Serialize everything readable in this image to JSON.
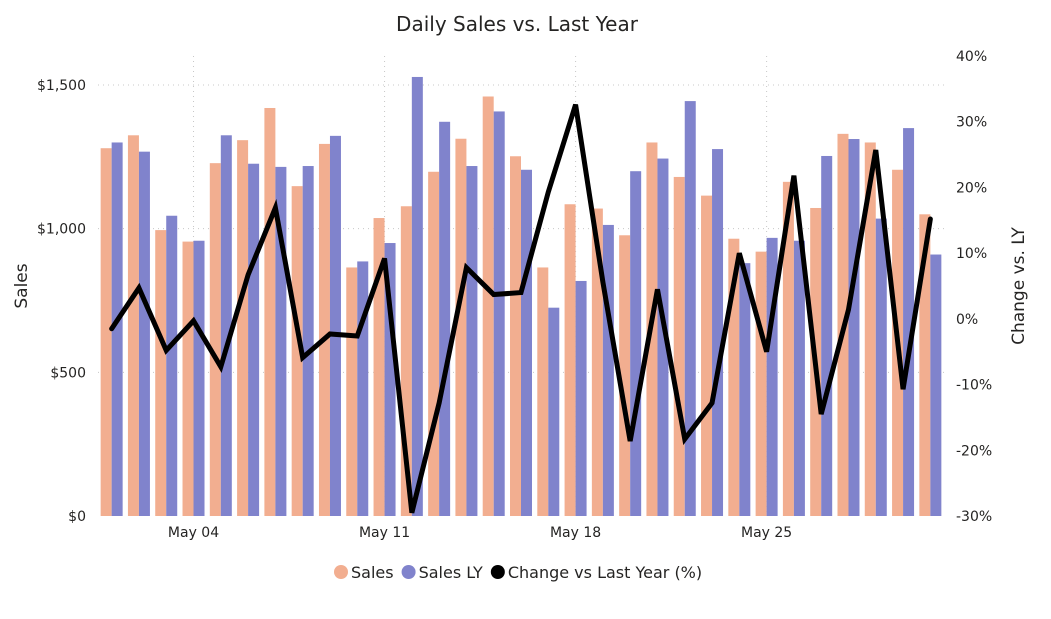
{
  "chart_data": {
    "type": "bar",
    "title": "Daily Sales vs. Last Year",
    "xlabel": "",
    "ylabel": "Sales",
    "y2label": "Change vs. LY",
    "ylim": [
      0,
      1500
    ],
    "y_ticks": [
      "$0",
      "$500",
      "$1,000",
      "$1,500"
    ],
    "y_tick_values": [
      0,
      500,
      1000,
      1500
    ],
    "y2lim": [
      -30,
      40
    ],
    "y2_ticks": [
      "-30%",
      "-20%",
      "-10%",
      "0%",
      "10%",
      "20%",
      "30%",
      "40%"
    ],
    "y2_tick_values": [
      -30,
      -20,
      -10,
      0,
      10,
      20,
      30,
      40
    ],
    "x_tick_labels": [
      {
        "label": "May 04",
        "index": 3
      },
      {
        "label": "May 11",
        "index": 10
      },
      {
        "label": "May 18",
        "index": 17
      },
      {
        "label": "May 25",
        "index": 24
      }
    ],
    "categories": [
      "May 01",
      "May 02",
      "May 03",
      "May 04",
      "May 05",
      "May 06",
      "May 07",
      "May 08",
      "May 09",
      "May 10",
      "May 11",
      "May 12",
      "May 13",
      "May 14",
      "May 15",
      "May 16",
      "May 17",
      "May 18",
      "May 19",
      "May 20",
      "May 21",
      "May 22",
      "May 23",
      "May 24",
      "May 25",
      "May 26",
      "May 27",
      "May 28",
      "May 29",
      "May 30",
      "May 31"
    ],
    "grid": true,
    "legend_position": "bottom-center",
    "series": [
      {
        "name": "Sales",
        "kind": "bar",
        "axis": "left",
        "color": "#F2AE90",
        "values": [
          1280,
          1325,
          995,
          955,
          1228,
          1308,
          1420,
          1148,
          1295,
          865,
          1037,
          1078,
          1198,
          1313,
          1460,
          1252,
          865,
          1085,
          1070,
          977,
          1300,
          1180,
          1115,
          965,
          920,
          1163,
          1072,
          1330,
          1300,
          1205,
          1050
        ]
      },
      {
        "name": "Sales LY",
        "kind": "bar",
        "axis": "left",
        "color": "#8083CC",
        "values": [
          1300,
          1268,
          1045,
          958,
          1325,
          1226,
          1215,
          1218,
          1323,
          886,
          950,
          1528,
          1372,
          1218,
          1408,
          1205,
          725,
          818,
          1013,
          1200,
          1244,
          1444,
          1277,
          880,
          968,
          958,
          1253,
          1312,
          1035,
          1350,
          910
        ]
      },
      {
        "name": "Change vs Last Year (%)",
        "kind": "line",
        "axis": "right",
        "color": "#000000",
        "values": [
          -1.5,
          4.7,
          -4.8,
          -0.3,
          -7.3,
          6.7,
          16.9,
          -5.9,
          -2.3,
          -2.6,
          9.2,
          -29.5,
          -12.8,
          7.8,
          3.7,
          4.0,
          19.3,
          32.6,
          5.6,
          -18.6,
          4.5,
          -18.3,
          -12.8,
          10.0,
          -5.0,
          21.8,
          -14.5,
          1.4,
          25.7,
          -10.7,
          15.2
        ]
      }
    ]
  },
  "legend": [
    {
      "label": "Sales",
      "color": "#F2AE90"
    },
    {
      "label": "Sales LY",
      "color": "#8083CC"
    },
    {
      "label": "Change vs Last Year (%)",
      "color": "#000000"
    }
  ]
}
